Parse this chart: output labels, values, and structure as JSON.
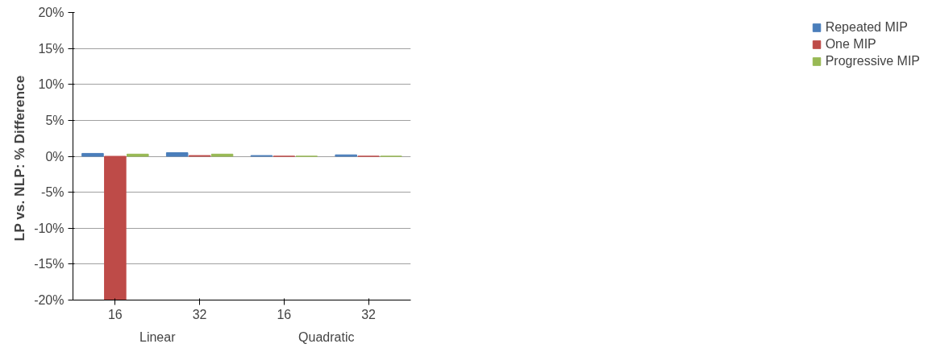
{
  "chart_data": {
    "type": "bar",
    "ylabel": "LP vs. NLP:  % Difference",
    "categories": [
      "16",
      "32",
      "16",
      "32"
    ],
    "annotations": [
      "Linear",
      "Quadratic"
    ],
    "series": [
      {
        "name": "Repeated MIP",
        "color": "#4a7ebb",
        "values": [
          0.4,
          0.5,
          0.1,
          0.2
        ]
      },
      {
        "name": "One MIP",
        "color": "#be4b48",
        "values": [
          -20,
          0.1,
          0,
          0
        ]
      },
      {
        "name": "Progressive MIP",
        "color": "#98b954",
        "values": [
          0.3,
          0.3,
          0,
          0
        ]
      }
    ],
    "ylim": [
      -20,
      20
    ],
    "yticks": [
      {
        "value": -20,
        "label": "-20%"
      },
      {
        "value": -15,
        "label": "-15%"
      },
      {
        "value": -10,
        "label": "-10%"
      },
      {
        "value": -5,
        "label": "-5%"
      },
      {
        "value": 0,
        "label": "0%"
      },
      {
        "value": 5,
        "label": "5%"
      },
      {
        "value": 10,
        "label": "10%"
      },
      {
        "value": 15,
        "label": "15%"
      },
      {
        "value": 20,
        "label": "20%"
      }
    ],
    "grid": "y",
    "legend": "right"
  }
}
